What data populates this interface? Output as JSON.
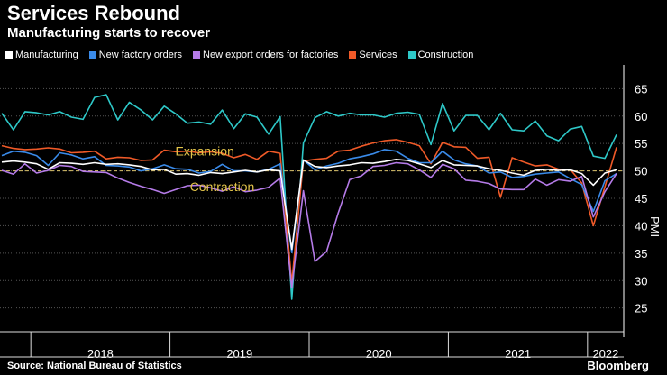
{
  "header": {
    "title": "Services Rebound",
    "subtitle": "Manufacturing starts to recover"
  },
  "legend": [
    {
      "label": "Manufacturing",
      "color": "#ffffff"
    },
    {
      "label": "New factory orders",
      "color": "#3a8bea"
    },
    {
      "label": "New export orders for factories",
      "color": "#b57be8"
    },
    {
      "label": "Services",
      "color": "#f05a28"
    },
    {
      "label": "Construction",
      "color": "#2ec8c8"
    }
  ],
  "footer": {
    "source": "Source: National Bureau of Statistics",
    "brand": "Bloomberg"
  },
  "chart_data": {
    "type": "line",
    "ylabel": "PMI",
    "ylim": [
      21,
      69
    ],
    "yticks": [
      25,
      30,
      35,
      40,
      45,
      50,
      55,
      60,
      65
    ],
    "x_start": "2017-10",
    "years": [
      {
        "label": "2018",
        "start_index": 3
      },
      {
        "label": "2019",
        "start_index": 15
      },
      {
        "label": "2020",
        "start_index": 27
      },
      {
        "label": "2021",
        "start_index": 39
      },
      {
        "label": "2022",
        "start_index": 51
      }
    ],
    "reference_line": 50,
    "annotations": [
      {
        "text": "Expansion",
        "value": 52.8,
        "index": 17.5
      },
      {
        "text": "Contraction",
        "value": 46.3,
        "index": 19
      }
    ],
    "series": [
      {
        "name": "Construction",
        "color": "#2ec8c8",
        "values": [
          60.5,
          57.5,
          60.8,
          60.6,
          60.2,
          60.8,
          59.8,
          59.4,
          63.4,
          63.9,
          59.3,
          62.5,
          61.1,
          59.3,
          61.8,
          60.4,
          58.7,
          58.9,
          58.5,
          61.1,
          57.7,
          60.4,
          59.8,
          56.7,
          59.9,
          26.6,
          55.1,
          59.7,
          60.8,
          60.0,
          60.5,
          60.2,
          60.2,
          59.8,
          60.5,
          60.7,
          60.3,
          54.8,
          62.3,
          57.3,
          60.1,
          60.1,
          57.5,
          60.5,
          57.5,
          57.3,
          59.1,
          56.4,
          55.5,
          57.6,
          58.1,
          52.7,
          52.3,
          56.6
        ]
      },
      {
        "name": "Services",
        "color": "#f05a28",
        "values": [
          54.6,
          54.1,
          53.9,
          54.0,
          54.2,
          54.0,
          53.3,
          53.4,
          53.6,
          52.2,
          52.5,
          52.4,
          51.9,
          52.0,
          53.8,
          53.5,
          53.6,
          53.3,
          53.5,
          53.2,
          52.4,
          53.0,
          52.1,
          53.6,
          53.2,
          29.6,
          51.8,
          52.1,
          52.3,
          53.6,
          53.8,
          54.5,
          55.1,
          55.5,
          55.7,
          55.2,
          54.6,
          51.3,
          55.2,
          54.4,
          54.3,
          52.3,
          52.5,
          45.2,
          52.4,
          51.6,
          50.9,
          51.1,
          50.3,
          50.3,
          47.8,
          40.0,
          47.1,
          54.3
        ]
      },
      {
        "name": "New factory orders",
        "color": "#3a8bea",
        "values": [
          52.8,
          53.6,
          53.4,
          52.8,
          51.0,
          53.3,
          52.9,
          52.2,
          52.6,
          51.0,
          50.9,
          50.7,
          50.0,
          50.4,
          51.1,
          50.4,
          50.3,
          49.6,
          49.9,
          51.2,
          50.0,
          50.0,
          49.8,
          50.3,
          51.3,
          35.1,
          52.0,
          50.2,
          50.9,
          51.4,
          52.2,
          52.6,
          53.1,
          53.9,
          53.6,
          52.3,
          51.5,
          51.5,
          53.6,
          52.0,
          51.3,
          50.9,
          49.6,
          49.8,
          48.8,
          49.0,
          49.4,
          49.6,
          49.8,
          48.6,
          47.5,
          42.6,
          48.2,
          49.5
        ]
      },
      {
        "name": "Manufacturing",
        "color": "#ffffff",
        "values": [
          51.6,
          51.8,
          51.6,
          51.3,
          50.3,
          51.5,
          51.4,
          51.2,
          51.5,
          51.2,
          51.3,
          51.1,
          50.8,
          50.2,
          50.3,
          49.4,
          49.5,
          49.2,
          49.7,
          49.5,
          49.8,
          50.1,
          49.8,
          50.2,
          50.0,
          35.7,
          52.0,
          50.8,
          50.6,
          50.9,
          51.1,
          51.5,
          51.4,
          51.7,
          52.1,
          51.9,
          51.3,
          50.6,
          51.9,
          51.1,
          51.0,
          50.9,
          50.4,
          50.1,
          49.6,
          49.2,
          50.1,
          50.3,
          50.1,
          50.2,
          49.5,
          47.4,
          49.6,
          50.2
        ]
      },
      {
        "name": "New export orders for factories",
        "color": "#b57be8",
        "values": [
          50.1,
          49.4,
          51.3,
          49.6,
          50.1,
          51.0,
          50.8,
          49.9,
          49.8,
          49.7,
          48.7,
          47.9,
          47.2,
          46.6,
          45.9,
          46.6,
          47.3,
          47.4,
          46.9,
          46.3,
          47.1,
          46.2,
          46.5,
          47.0,
          48.7,
          28.7,
          46.4,
          33.5,
          35.3,
          42.3,
          48.4,
          49.1,
          50.8,
          51.0,
          51.5,
          51.3,
          50.2,
          48.8,
          51.2,
          50.4,
          48.3,
          48.1,
          47.7,
          46.7,
          46.6,
          46.6,
          48.5,
          47.4,
          48.4,
          48.1,
          49.0,
          41.6,
          46.2,
          49.5
        ]
      }
    ]
  }
}
